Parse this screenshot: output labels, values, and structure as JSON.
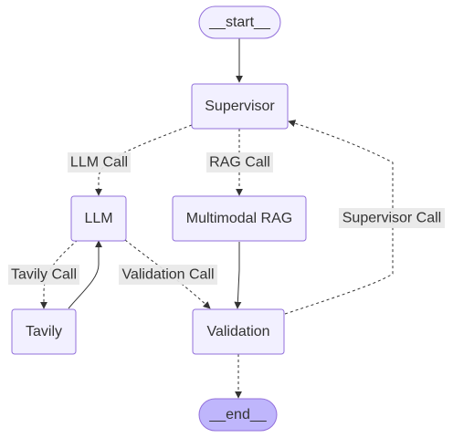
{
  "nodes": {
    "start": "__start__",
    "supervisor": "Supervisor",
    "llm": "LLM",
    "multimodal_rag": "Multimodal RAG",
    "tavily": "Tavily",
    "validation": "Validation",
    "end": "__end__"
  },
  "edge_labels": {
    "llm_call": "LLM Call",
    "rag_call": "RAG Call",
    "tavily_call": "Tavily Call",
    "validation_call": "Validation Call",
    "supervisor_call": "Supervisor Call"
  },
  "colors": {
    "node_fill": "#f2f0ff",
    "node_border": "#9370db",
    "end_fill": "#bfb6fc",
    "edge": "#333333",
    "label_bg": "#e8e8e8"
  }
}
